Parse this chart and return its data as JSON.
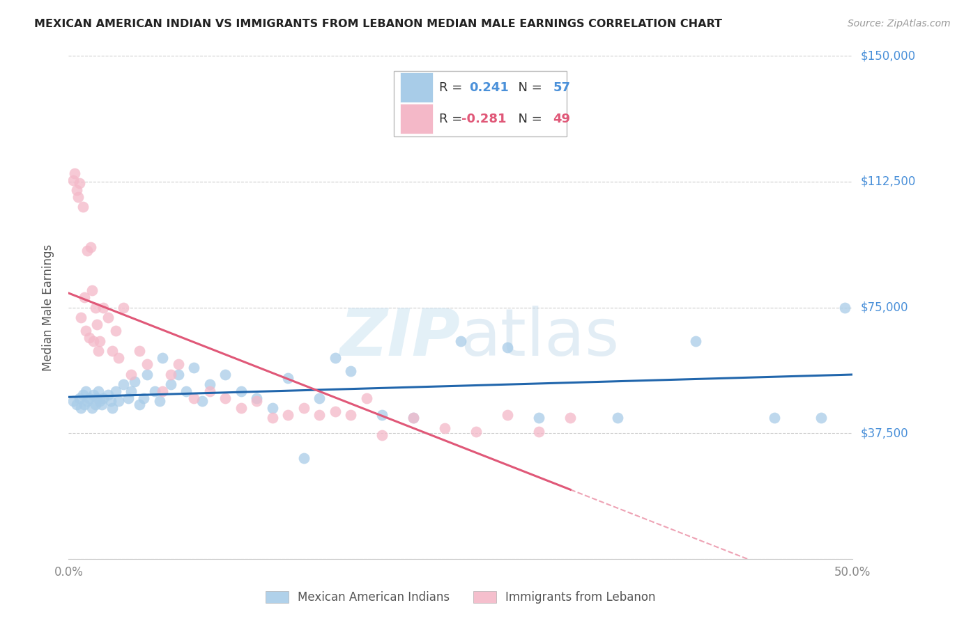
{
  "title": "MEXICAN AMERICAN INDIAN VS IMMIGRANTS FROM LEBANON MEDIAN MALE EARNINGS CORRELATION CHART",
  "source": "Source: ZipAtlas.com",
  "ylabel": "Median Male Earnings",
  "yticks": [
    0,
    37500,
    75000,
    112500,
    150000
  ],
  "ytick_labels": [
    "",
    "$37,500",
    "$75,000",
    "$112,500",
    "$150,000"
  ],
  "xlim": [
    0.0,
    0.5
  ],
  "ylim": [
    0,
    150000
  ],
  "legend1_label": "Mexican American Indians",
  "legend2_label": "Immigrants from Lebanon",
  "r1": 0.241,
  "n1": 57,
  "r2": -0.281,
  "n2": 49,
  "blue_color": "#a8cce8",
  "pink_color": "#f4b8c8",
  "line_blue": "#2166ac",
  "line_pink": "#e05878",
  "blue_scatter_x": [
    0.003,
    0.005,
    0.007,
    0.008,
    0.009,
    0.01,
    0.011,
    0.012,
    0.013,
    0.015,
    0.016,
    0.017,
    0.018,
    0.019,
    0.02,
    0.021,
    0.022,
    0.025,
    0.027,
    0.028,
    0.03,
    0.032,
    0.035,
    0.038,
    0.04,
    0.042,
    0.045,
    0.048,
    0.05,
    0.055,
    0.058,
    0.06,
    0.065,
    0.07,
    0.075,
    0.08,
    0.085,
    0.09,
    0.1,
    0.11,
    0.12,
    0.13,
    0.14,
    0.15,
    0.16,
    0.17,
    0.18,
    0.2,
    0.22,
    0.25,
    0.28,
    0.3,
    0.35,
    0.4,
    0.45,
    0.48,
    0.495
  ],
  "blue_scatter_y": [
    47000,
    46000,
    48000,
    45000,
    49000,
    46000,
    50000,
    47000,
    48000,
    45000,
    49000,
    46000,
    48000,
    50000,
    47000,
    46000,
    48000,
    49000,
    47000,
    45000,
    50000,
    47000,
    52000,
    48000,
    50000,
    53000,
    46000,
    48000,
    55000,
    50000,
    47000,
    60000,
    52000,
    55000,
    50000,
    57000,
    47000,
    52000,
    55000,
    50000,
    48000,
    45000,
    54000,
    30000,
    48000,
    60000,
    56000,
    43000,
    42000,
    65000,
    63000,
    42000,
    42000,
    65000,
    42000,
    42000,
    75000
  ],
  "pink_scatter_x": [
    0.003,
    0.004,
    0.005,
    0.006,
    0.007,
    0.008,
    0.009,
    0.01,
    0.011,
    0.012,
    0.013,
    0.014,
    0.015,
    0.016,
    0.017,
    0.018,
    0.019,
    0.02,
    0.022,
    0.025,
    0.028,
    0.03,
    0.032,
    0.035,
    0.04,
    0.045,
    0.05,
    0.06,
    0.065,
    0.07,
    0.08,
    0.09,
    0.1,
    0.11,
    0.12,
    0.13,
    0.14,
    0.15,
    0.16,
    0.17,
    0.18,
    0.19,
    0.2,
    0.22,
    0.24,
    0.26,
    0.28,
    0.3,
    0.32
  ],
  "pink_scatter_y": [
    113000,
    115000,
    110000,
    108000,
    112000,
    72000,
    105000,
    78000,
    68000,
    92000,
    66000,
    93000,
    80000,
    65000,
    75000,
    70000,
    62000,
    65000,
    75000,
    72000,
    62000,
    68000,
    60000,
    75000,
    55000,
    62000,
    58000,
    50000,
    55000,
    58000,
    48000,
    50000,
    48000,
    45000,
    47000,
    42000,
    43000,
    45000,
    43000,
    44000,
    43000,
    48000,
    37000,
    42000,
    39000,
    38000,
    43000,
    38000,
    42000
  ]
}
